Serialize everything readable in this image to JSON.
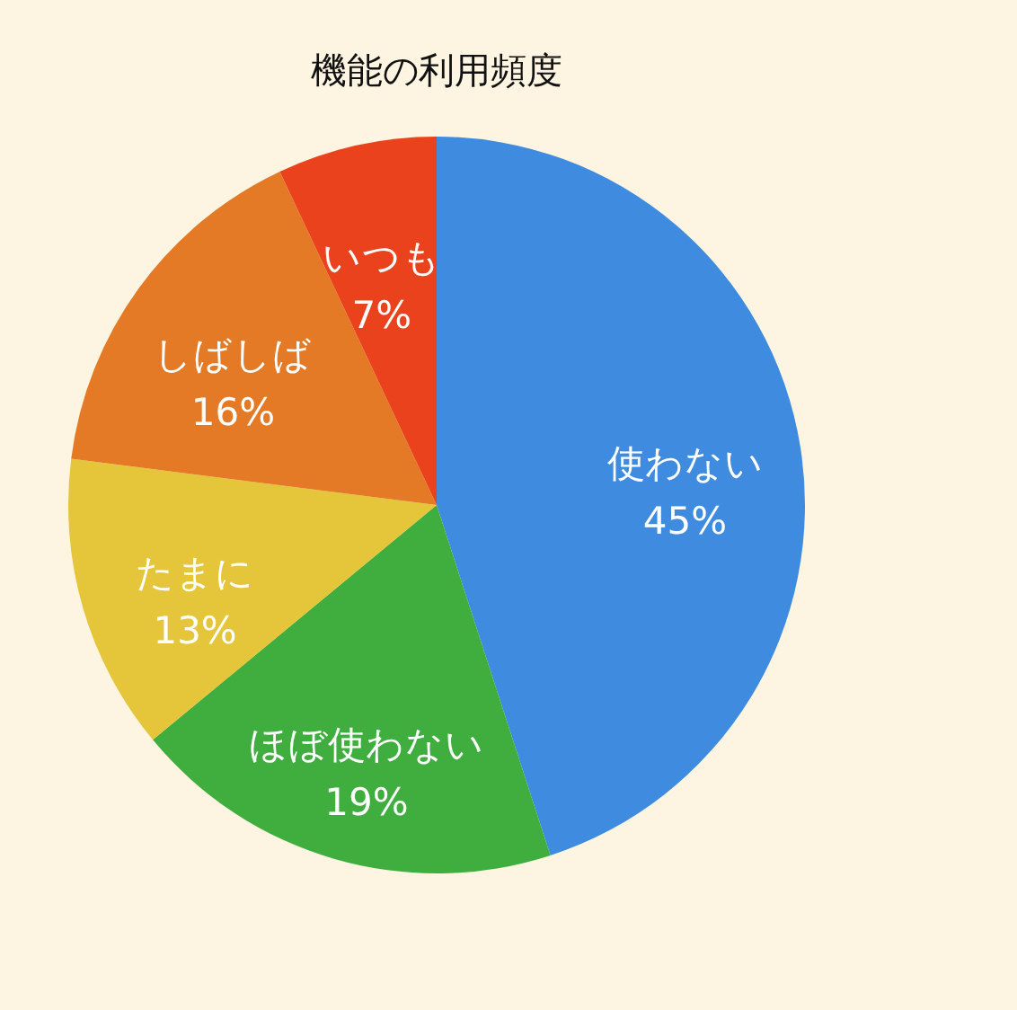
{
  "chart_data": {
    "type": "pie",
    "title": "機能の利用頻度",
    "categories": [
      "使わない",
      "ほぼ使わない",
      "たまに",
      "しばしば",
      "いつも"
    ],
    "values": [
      45,
      19,
      13,
      16,
      7
    ],
    "value_labels": [
      "45%",
      "19%",
      "13%",
      "16%",
      "7%"
    ],
    "colors": [
      "#3f8be0",
      "#3fae3f",
      "#e5c53a",
      "#e47a25",
      "#e9421c"
    ],
    "legend": false
  }
}
